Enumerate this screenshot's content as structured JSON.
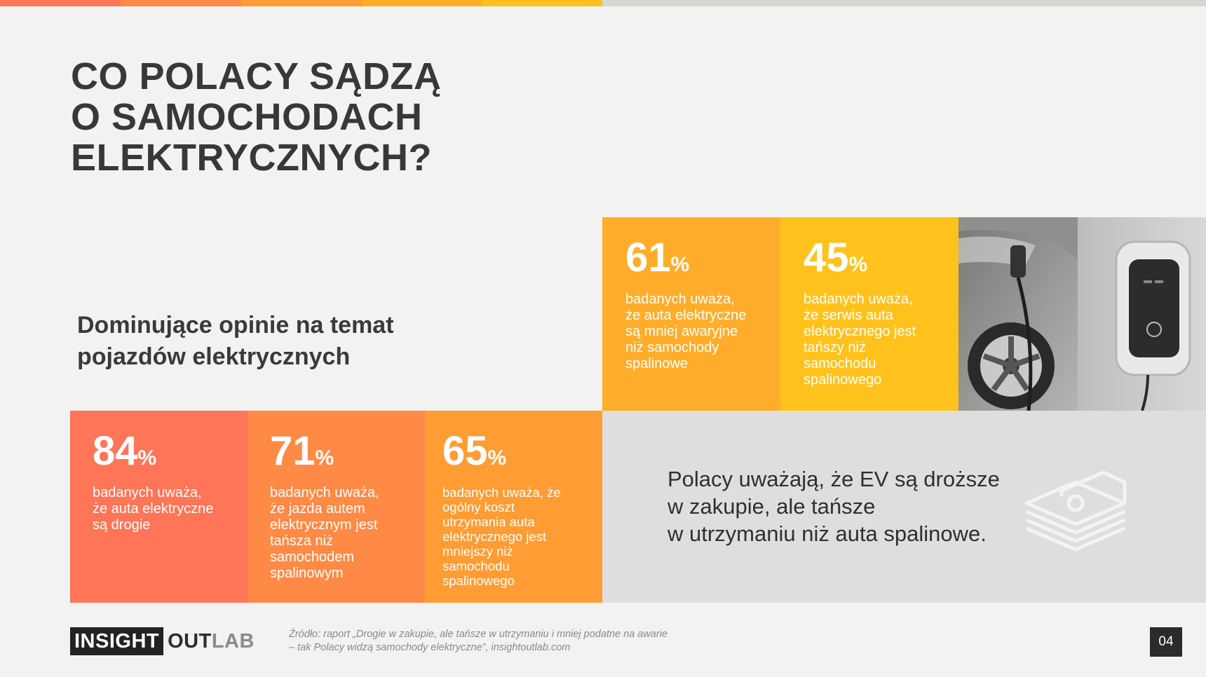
{
  "colors": {
    "tile_84": "#ff7557",
    "tile_71": "#ff8a45",
    "tile_65": "#ff9c33",
    "tile_61": "#ffad2a",
    "tile_45": "#ffc21d",
    "grey_panel": "#dededc",
    "background": "#f2f2f0"
  },
  "title": {
    "line1": "CO POLACY SĄDZĄ",
    "line2": "O SAMOCHODACH",
    "line3": "ELEKTRYCZNYCH?"
  },
  "subtitle": {
    "line1": "Dominujące opinie na temat",
    "line2": "pojazdów elektrycznych"
  },
  "stats": [
    {
      "value": "84",
      "unit": "%",
      "lines": [
        "badanych uważa,",
        "że auta elektryczne",
        "są drogie"
      ]
    },
    {
      "value": "71",
      "unit": "%",
      "lines": [
        "badanych uważa,",
        "że jazda autem",
        "elektrycznym jest",
        "tańsza niż",
        "samochodem",
        "spalinowym"
      ]
    },
    {
      "value": "65",
      "unit": "%",
      "lines": [
        "badanych uważa, że",
        "ogólny koszt",
        "utrzymania auta",
        "elektrycznego jest",
        "mniejszy niż",
        "samochodu",
        "spalinowego"
      ]
    },
    {
      "value": "61",
      "unit": "%",
      "lines": [
        "badanych uważa,",
        "że auta elektryczne",
        "są mniej awaryjne",
        "niż samochody",
        "spalinowe"
      ]
    },
    {
      "value": "45",
      "unit": "%",
      "lines": [
        "badanych uważa,",
        "że serwis auta",
        "elektrycznego jest",
        "tańszy niż",
        "samochodu",
        "spalinowego"
      ]
    }
  ],
  "summary": {
    "line1": "Polacy uważają, że EV są droższe",
    "line2": "w zakupie, ale tańsze",
    "line3": "w utrzymaniu niż auta spalinowe."
  },
  "logo": {
    "part1": "INSIGHT",
    "part2": "OUT",
    "part3": "LAB"
  },
  "source": {
    "line1": "Źródło: raport „Drogie w zakupie, ale tańsze w utrzymaniu i mniej podatne na awarie",
    "line2": "– tak Polacy widzą samochody elektryczne”, insightoutlab.com"
  },
  "page_number": "04",
  "icons": {
    "photo": "ev-charging-photo",
    "money": "money-stack-icon"
  }
}
